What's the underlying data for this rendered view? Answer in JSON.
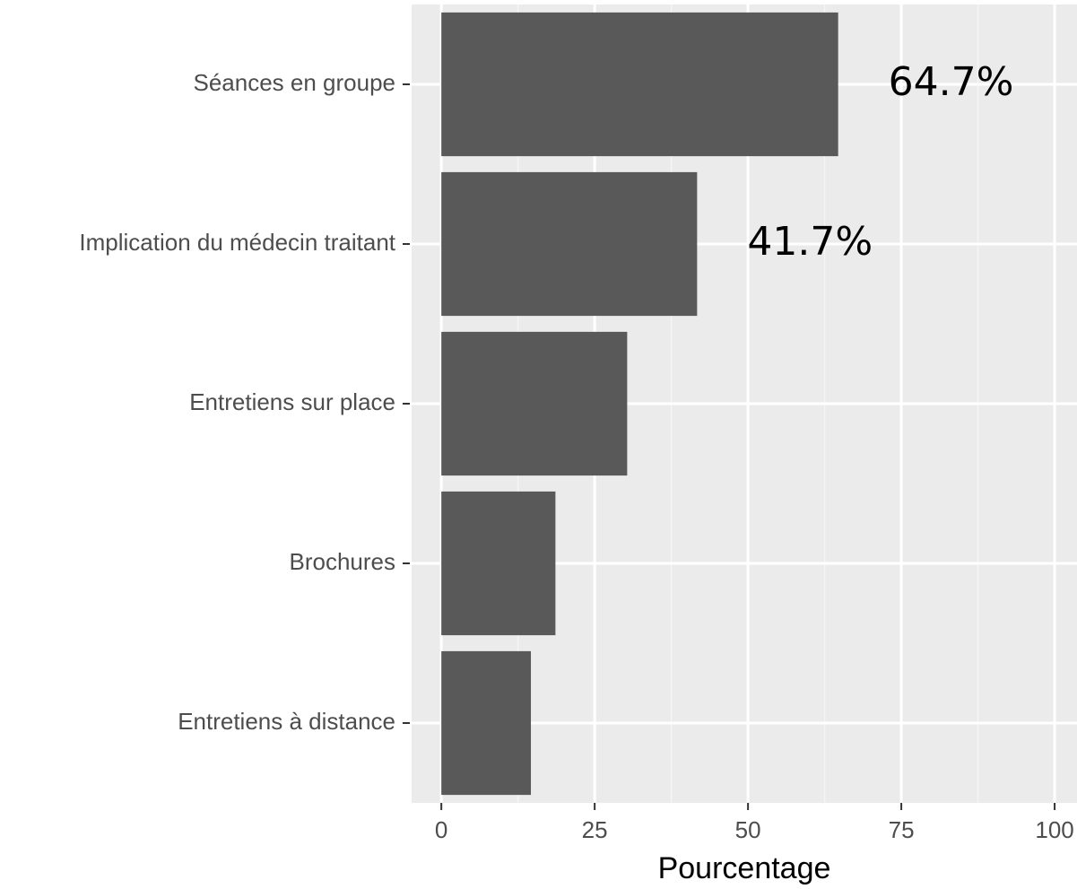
{
  "chart_data": {
    "type": "barh",
    "categories": [
      "Séances en groupe",
      "Implication du médecin traitant",
      "Entretiens sur place",
      "Brochures",
      "Entretiens à distance"
    ],
    "values": [
      64.7,
      41.7,
      30.3,
      18.6,
      14.6
    ],
    "value_labels": [
      "64.7%",
      "41.7%",
      null,
      null,
      null
    ],
    "color": "#595959",
    "x_label": "Pourcentage",
    "xlim": [
      -4.85,
      103.5
    ],
    "xticks": [
      0,
      25,
      50,
      75,
      100
    ],
    "grid": true
  }
}
